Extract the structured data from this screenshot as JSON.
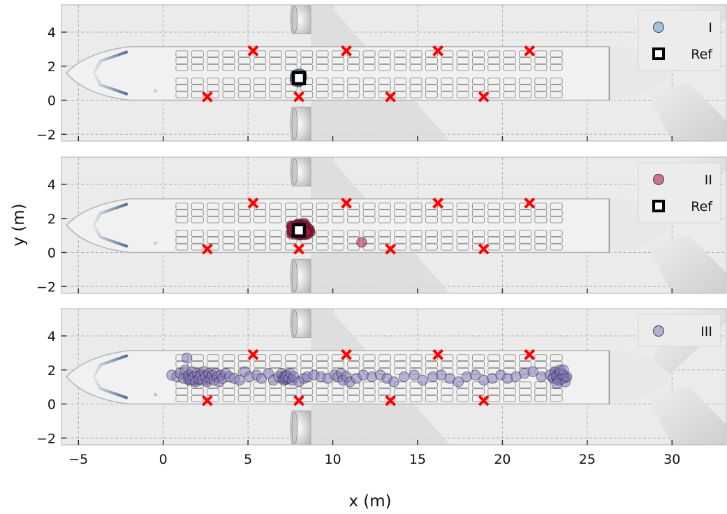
{
  "colors": {
    "panel_bg": "#ebebeb",
    "grid": "#b0b0b0",
    "marker_x": "#ff0000",
    "series_I": "#5fa3cc",
    "series_II": "#b0133c",
    "series_III": "#8a7cbf",
    "ref": "#000000"
  },
  "chart_data": {
    "type": "scatter",
    "xlabel": "x (m)",
    "ylabel": "y (m)",
    "xlim": [
      -6,
      33.2
    ],
    "ylim": [
      -2.4,
      5.6
    ],
    "xticks": [
      -5,
      0,
      5,
      10,
      15,
      20,
      25,
      30
    ],
    "yticks": [
      -2,
      0,
      2,
      4
    ],
    "grid": true,
    "background": "aircraft cabin seat map",
    "shared_markers": {
      "name": "",
      "marker": "x",
      "points": [
        [
          5.3,
          2.9
        ],
        [
          10.8,
          2.9
        ],
        [
          16.2,
          2.9
        ],
        [
          21.6,
          2.9
        ],
        [
          2.6,
          0.2
        ],
        [
          8.0,
          0.2
        ],
        [
          13.4,
          0.2
        ],
        [
          18.9,
          0.2
        ]
      ]
    },
    "panels": [
      {
        "legend": [
          "I",
          "Ref"
        ],
        "legend_position": "top-right",
        "series": [
          {
            "name": "I",
            "cluster": {
              "center": [
                8.0,
                1.3
              ],
              "spread": [
                0.3,
                0.3
              ],
              "count": 70
            },
            "outliers": []
          }
        ],
        "ref": [
          8.0,
          1.3
        ]
      },
      {
        "legend": [
          "II",
          "Ref"
        ],
        "legend_position": "top-right",
        "series": [
          {
            "name": "II",
            "cluster": {
              "center": [
                8.1,
                1.35
              ],
              "spread": [
                0.7,
                0.45
              ],
              "count": 180
            },
            "outliers": [
              [
                11.7,
                0.6
              ]
            ]
          }
        ],
        "ref": [
          8.0,
          1.3
        ]
      },
      {
        "legend": [
          "III"
        ],
        "legend_position": "top-right",
        "series": [
          {
            "name": "III",
            "points": [
              [
                0.5,
                1.7
              ],
              [
                0.8,
                1.6
              ],
              [
                1.0,
                1.8
              ],
              [
                1.2,
                1.5
              ],
              [
                1.3,
                2.0
              ],
              [
                1.4,
                2.7
              ],
              [
                1.5,
                1.7
              ],
              [
                1.6,
                1.4
              ],
              [
                1.7,
                1.9
              ],
              [
                1.8,
                1.6
              ],
              [
                1.9,
                1.3
              ],
              [
                2.0,
                1.8
              ],
              [
                2.1,
                1.5
              ],
              [
                2.2,
                1.7
              ],
              [
                2.3,
                1.4
              ],
              [
                2.4,
                1.9
              ],
              [
                2.5,
                1.6
              ],
              [
                2.6,
                1.3
              ],
              [
                2.7,
                1.8
              ],
              [
                2.8,
                1.5
              ],
              [
                2.9,
                1.7
              ],
              [
                3.0,
                1.4
              ],
              [
                3.1,
                1.8
              ],
              [
                3.2,
                1.6
              ],
              [
                3.3,
                1.3
              ],
              [
                3.4,
                1.7
              ],
              [
                3.5,
                1.5
              ],
              [
                3.7,
                1.8
              ],
              [
                3.9,
                1.6
              ],
              [
                4.2,
                1.5
              ],
              [
                4.5,
                1.4
              ],
              [
                4.8,
                1.9
              ],
              [
                5.1,
                1.6
              ],
              [
                5.5,
                1.7
              ],
              [
                5.8,
                1.5
              ],
              [
                6.2,
                1.8
              ],
              [
                6.5,
                1.4
              ],
              [
                6.8,
                1.6
              ],
              [
                7.0,
                1.8
              ],
              [
                7.1,
                1.4
              ],
              [
                7.2,
                1.6
              ],
              [
                7.3,
                1.7
              ],
              [
                7.4,
                1.5
              ],
              [
                7.5,
                1.8
              ],
              [
                7.6,
                1.4
              ],
              [
                7.7,
                1.6
              ],
              [
                8.0,
                1.3
              ],
              [
                8.3,
                1.5
              ],
              [
                8.5,
                1.6
              ],
              [
                8.9,
                1.7
              ],
              [
                9.3,
                1.6
              ],
              [
                9.7,
                1.5
              ],
              [
                10.1,
                1.7
              ],
              [
                10.3,
                1.6
              ],
              [
                10.5,
                1.8
              ],
              [
                10.6,
                1.4
              ],
              [
                10.8,
                1.6
              ],
              [
                11.0,
                1.3
              ],
              [
                11.4,
                1.5
              ],
              [
                11.8,
                1.7
              ],
              [
                12.3,
                1.6
              ],
              [
                12.8,
                1.7
              ],
              [
                13.2,
                1.5
              ],
              [
                13.6,
                1.3
              ],
              [
                14.2,
                1.6
              ],
              [
                14.8,
                1.7
              ],
              [
                15.3,
                1.4
              ],
              [
                15.9,
                1.6
              ],
              [
                16.4,
                1.7
              ],
              [
                16.9,
                1.5
              ],
              [
                17.4,
                1.3
              ],
              [
                17.9,
                1.6
              ],
              [
                18.4,
                1.7
              ],
              [
                18.9,
                1.4
              ],
              [
                19.4,
                1.5
              ],
              [
                19.9,
                1.7
              ],
              [
                20.3,
                1.5
              ],
              [
                20.8,
                1.6
              ],
              [
                21.3,
                1.8
              ],
              [
                21.8,
                1.9
              ],
              [
                22.3,
                1.6
              ],
              [
                22.8,
                1.7
              ],
              [
                23.0,
                1.5
              ],
              [
                23.1,
                1.9
              ],
              [
                23.2,
                1.6
              ],
              [
                23.3,
                1.4
              ],
              [
                23.4,
                1.8
              ],
              [
                23.5,
                1.5
              ],
              [
                23.6,
                1.7
              ],
              [
                23.7,
                1.3
              ],
              [
                23.8,
                1.6
              ],
              [
                23.4,
                2.0
              ],
              [
                23.2,
                1.2
              ],
              [
                23.6,
                2.0
              ]
            ],
            "clusters": [
              {
                "center": [
                  2.0,
                  1.55
                ],
                "spread": [
                  0.9,
                  0.25
                ],
                "count": 40
              },
              {
                "center": [
                  7.2,
                  1.55
                ],
                "spread": [
                  0.3,
                  0.2
                ],
                "count": 20
              },
              {
                "center": [
                  23.4,
                  1.6
                ],
                "spread": [
                  0.5,
                  0.3
                ],
                "count": 35
              }
            ]
          }
        ]
      }
    ]
  }
}
